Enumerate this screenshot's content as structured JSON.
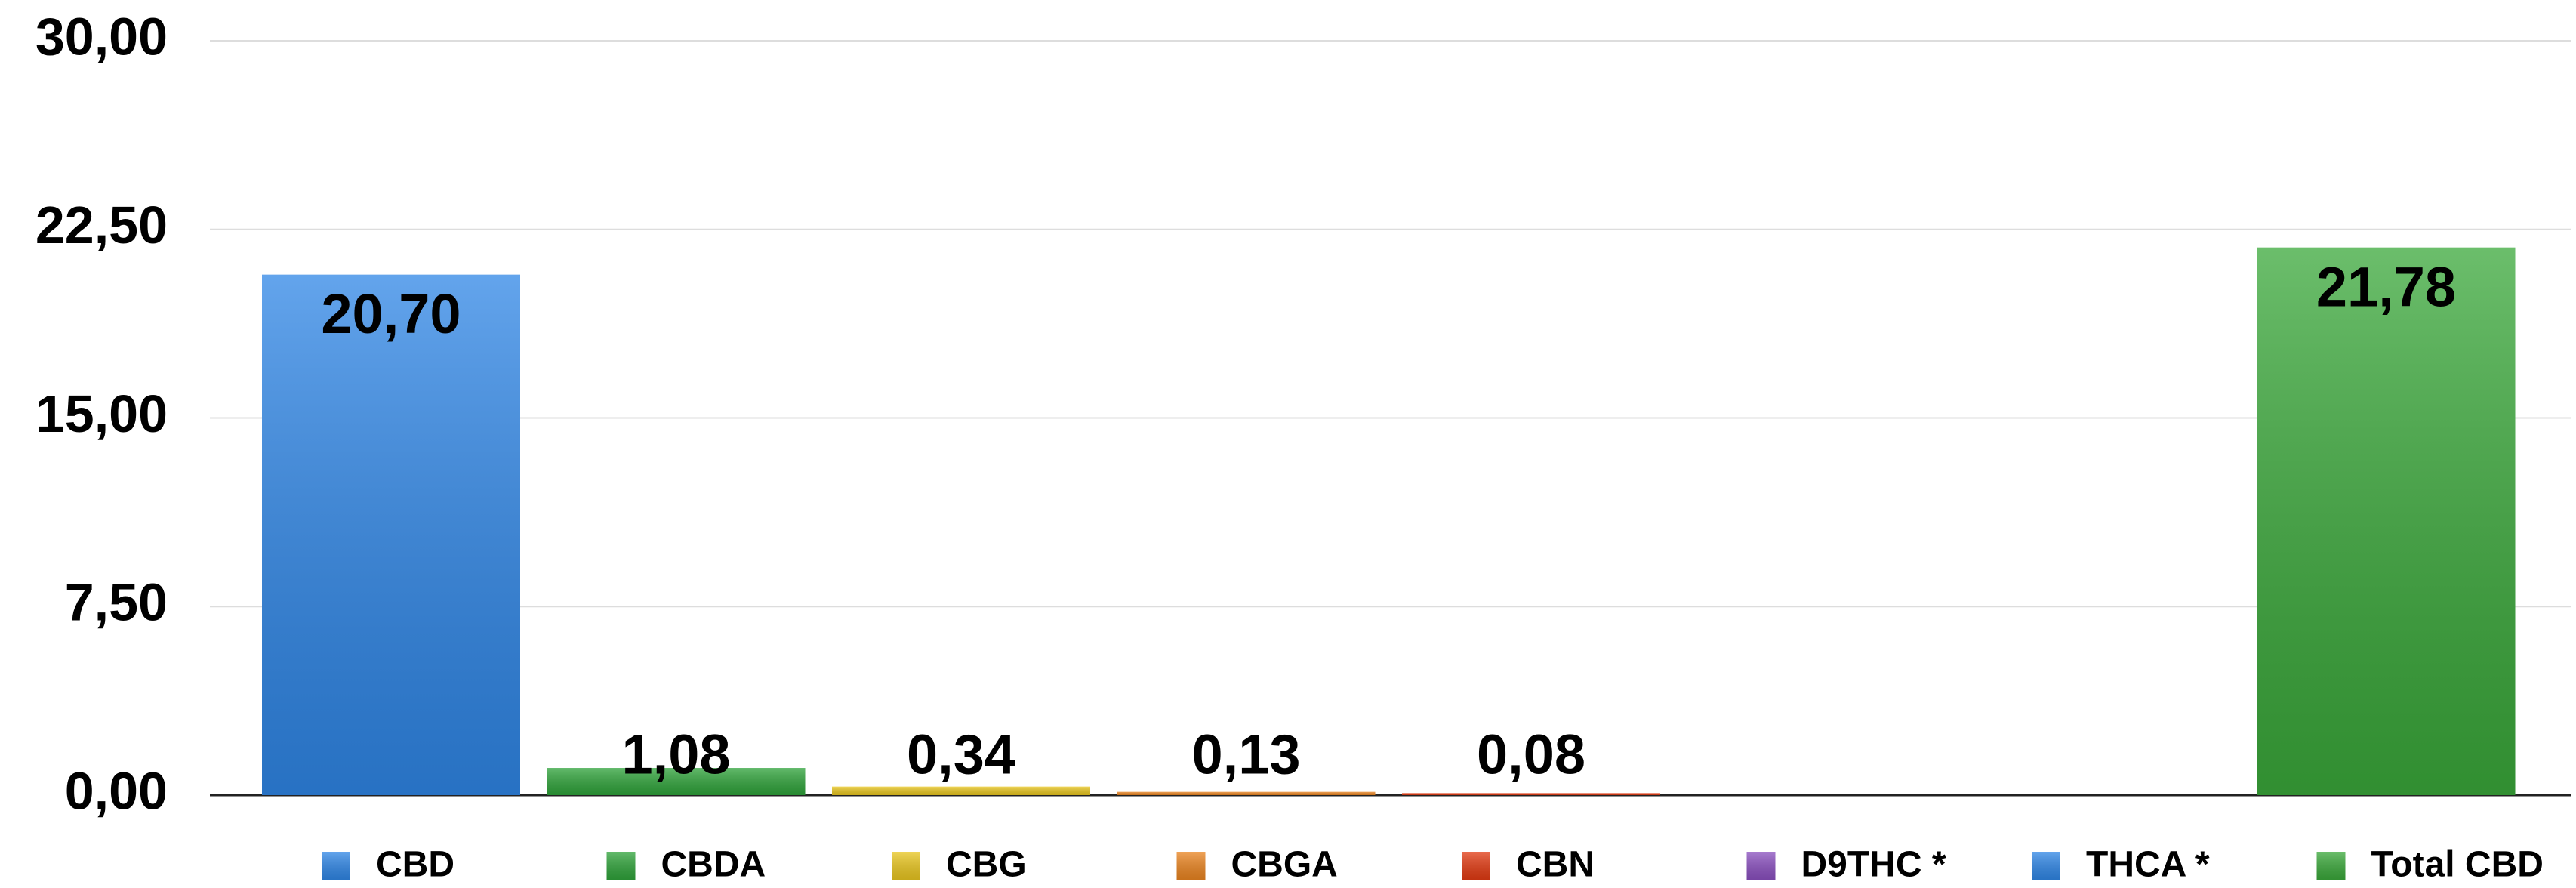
{
  "chart_data": {
    "type": "bar",
    "categories": [
      "CBD",
      "CBDA",
      "CBG",
      "CBGA",
      "CBN",
      "D9THC *",
      "THCA *",
      "Total CBD"
    ],
    "values": [
      20.7,
      1.08,
      0.34,
      0.13,
      0.08,
      null,
      null,
      21.78
    ],
    "value_labels": [
      "20,70",
      "1,08",
      "0,34",
      "0,13",
      "0,08",
      null,
      null,
      "21,78"
    ],
    "colors": [
      "#2f86e6",
      "#2fa33a",
      "#e9c61f",
      "#ea8420",
      "#e23a12",
      "#8a4fbf",
      "#2f86e6",
      "#3aa83a"
    ],
    "ylim": [
      0,
      30
    ],
    "yticks": [
      {
        "value": 0,
        "label": "0,00"
      },
      {
        "value": 7.5,
        "label": "7,50"
      },
      {
        "value": 15,
        "label": "15,00"
      },
      {
        "value": 22.5,
        "label": "22,50"
      },
      {
        "value": 30,
        "label": "30,00"
      }
    ],
    "grid": true
  }
}
